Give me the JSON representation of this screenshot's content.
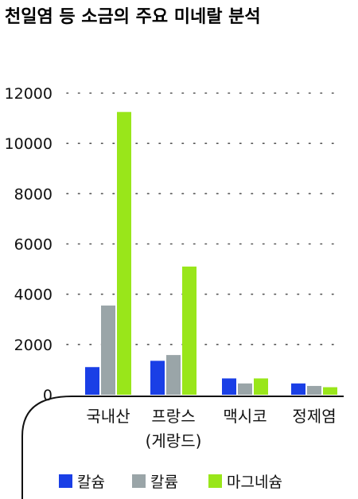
{
  "chart_data": {
    "type": "bar",
    "title": "천일염 등 소금의 주요 미네랄 분석",
    "xlabel": "",
    "ylabel": "",
    "ylim": [
      0,
      12000
    ],
    "yticks": [
      0,
      2000,
      4000,
      6000,
      8000,
      10000,
      12000
    ],
    "grid": true,
    "legend_position": "bottom",
    "categories": [
      [
        "국내산"
      ],
      [
        "프랑스",
        "(게랑드)"
      ],
      [
        "맥시코"
      ],
      [
        "정제염"
      ]
    ],
    "series": [
      {
        "name": "칼슘",
        "values": [
          1100,
          1350,
          650,
          450
        ],
        "color": "#1a3fe6"
      },
      {
        "name": "칼륨",
        "values": [
          3550,
          1580,
          450,
          350
        ],
        "color": "#9aa5a8"
      },
      {
        "name": "마그네슘",
        "values": [
          11250,
          5100,
          650,
          300
        ],
        "color": "#99e61a"
      }
    ]
  },
  "colors": {
    "text": "#111111",
    "grid": "#555555",
    "axis": "#111111"
  }
}
